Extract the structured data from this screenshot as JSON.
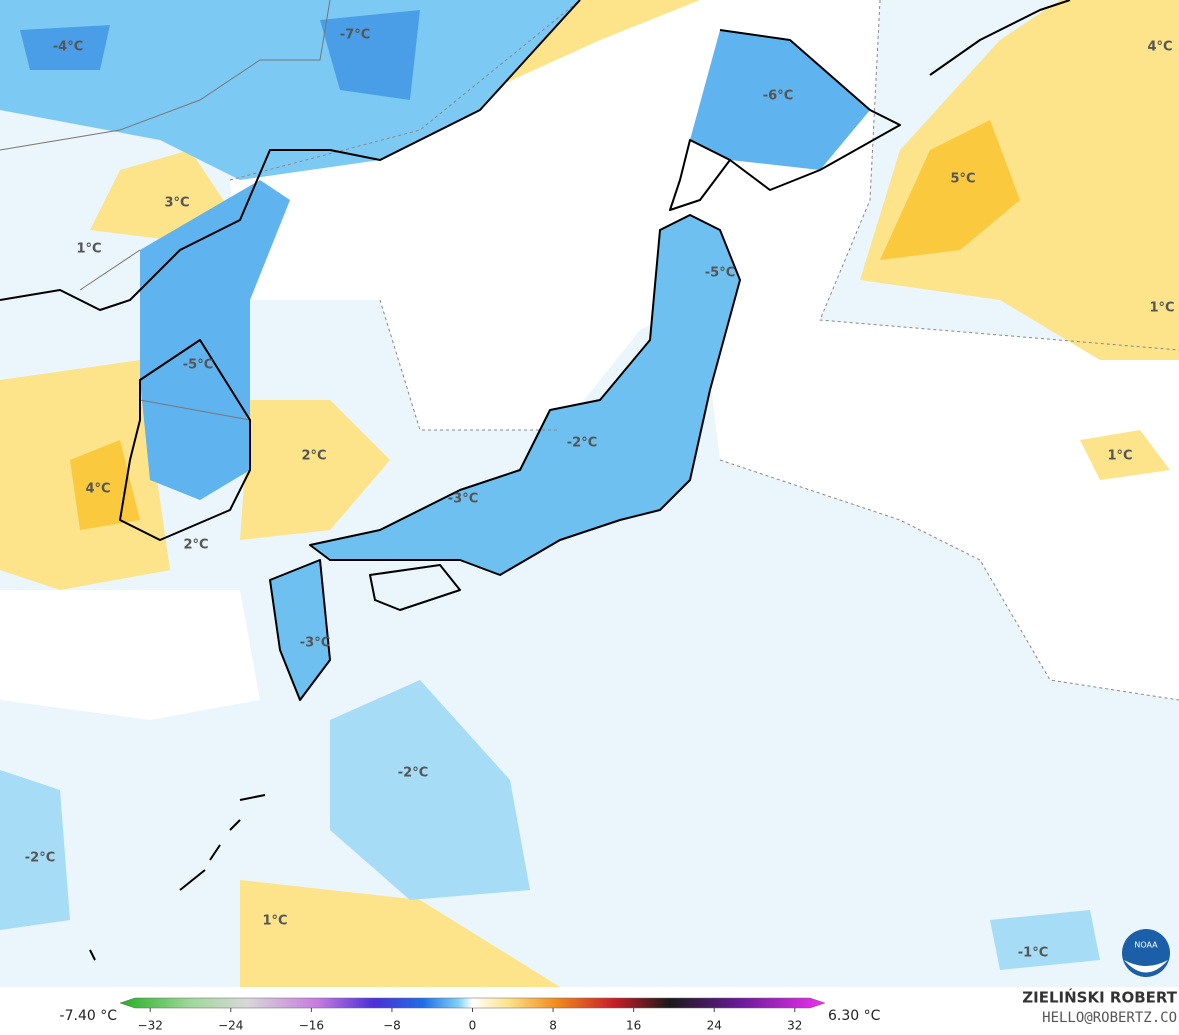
{
  "map": {
    "contour_labels": [
      "-4°C",
      "-7°C",
      "-6°C",
      "4°C",
      "5°C",
      "3°C",
      "1°C",
      "-5°C",
      "1°C",
      "-5°C",
      "-2°C",
      "2°C",
      "1°C",
      "4°C",
      "-3°C",
      "2°C",
      "-3°C",
      "-2°C",
      "-2°C",
      "1°C",
      "-1°C"
    ],
    "logo": "NOAA"
  },
  "colorbar": {
    "min_label": "-7.40 °C",
    "max_label": "6.30 °C",
    "lim": [
      -35,
      35
    ],
    "ticks": [
      {
        "value": -32,
        "label": "−32"
      },
      {
        "value": -24,
        "label": "−24"
      },
      {
        "value": -16,
        "label": "−16"
      },
      {
        "value": -8,
        "label": "−8"
      },
      0,
      8,
      16,
      24,
      32
    ]
  },
  "credit": {
    "author": "ZIELIŃSKI ROBERT",
    "contact": "HELLO@ROBERTZ.CO"
  }
}
